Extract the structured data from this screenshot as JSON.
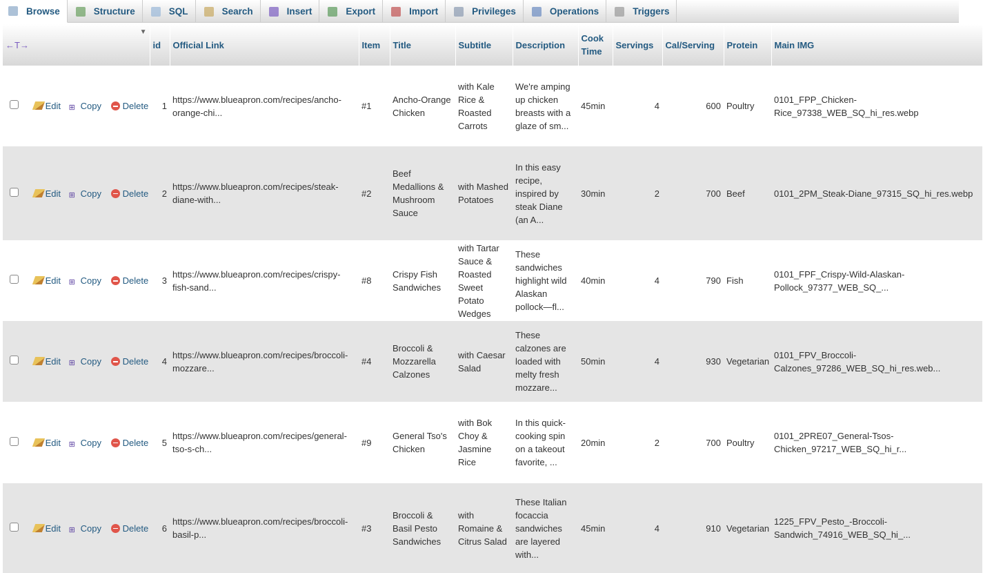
{
  "tabs": [
    {
      "label": "Browse",
      "icon": "browse-icon",
      "active": true
    },
    {
      "label": "Structure",
      "icon": "structure-icon"
    },
    {
      "label": "SQL",
      "icon": "sql-icon"
    },
    {
      "label": "Search",
      "icon": "search-icon"
    },
    {
      "label": "Insert",
      "icon": "insert-icon"
    },
    {
      "label": "Export",
      "icon": "export-icon"
    },
    {
      "label": "Import",
      "icon": "import-icon"
    },
    {
      "label": "Privileges",
      "icon": "privileges-icon"
    },
    {
      "label": "Operations",
      "icon": "operations-icon"
    },
    {
      "label": "Triggers",
      "icon": "triggers-icon"
    }
  ],
  "table": {
    "resize_handle": "←T→",
    "columns": [
      "id",
      "Official Link",
      "Item",
      "Title",
      "Subtitle",
      "Description",
      "Cook Time",
      "Servings",
      "Cal/Serving",
      "Protein",
      "Main IMG"
    ],
    "actions": {
      "edit": "Edit",
      "copy": "Copy",
      "delete": "Delete"
    },
    "rows": [
      {
        "id": "1",
        "link": "https://www.blueapron.com/recipes/ancho-orange-chi...",
        "item": "#1",
        "title": "Ancho-Orange Chicken",
        "subtitle": "with Kale Rice & Roasted Carrots",
        "description": "We're amping up chicken breasts with a glaze of sm...",
        "cook_time": "45min",
        "servings": "4",
        "cal": "600",
        "protein": "Poultry",
        "img": "0101_FPP_Chicken-Rice_97338_WEB_SQ_hi_res.webp"
      },
      {
        "id": "2",
        "link": "https://www.blueapron.com/recipes/steak-diane-with...",
        "item": "#2",
        "title": "Beef Medallions & Mushroom Sauce",
        "subtitle": "with Mashed Potatoes",
        "description": "In this easy recipe, inspired by steak Diane (an A...",
        "cook_time": "30min",
        "servings": "2",
        "cal": "700",
        "protein": "Beef",
        "img": "0101_2PM_Steak-Diane_97315_SQ_hi_res.webp"
      },
      {
        "id": "3",
        "link": "https://www.blueapron.com/recipes/crispy-fish-sand...",
        "item": "#8",
        "title": "Crispy Fish Sandwiches",
        "subtitle": "with Tartar Sauce & Roasted Sweet Potato Wedges",
        "description": "These sandwiches highlight wild Alaskan pollock—fl...",
        "cook_time": "40min",
        "servings": "4",
        "cal": "790",
        "protein": "Fish",
        "img": "0101_FPF_Crispy-Wild-Alaskan-Pollock_97377_WEB_SQ_..."
      },
      {
        "id": "4",
        "link": "https://www.blueapron.com/recipes/broccoli-mozzare...",
        "item": "#4",
        "title": "Broccoli & Mozzarella Calzones",
        "subtitle": "with Caesar Salad",
        "description": "These calzones are loaded with melty fresh mozzare...",
        "cook_time": "50min",
        "servings": "4",
        "cal": "930",
        "protein": "Vegetarian",
        "img": "0101_FPV_Broccoli-Calzones_97286_WEB_SQ_hi_res.web..."
      },
      {
        "id": "5",
        "link": "https://www.blueapron.com/recipes/general-tso-s-ch...",
        "item": "#9",
        "title": "General Tso's Chicken",
        "subtitle": "with Bok Choy & Jasmine Rice",
        "description": "In this quick-cooking spin on a takeout favorite, ...",
        "cook_time": "20min",
        "servings": "2",
        "cal": "700",
        "protein": "Poultry",
        "img": "0101_2PRE07_General-Tsos-Chicken_97217_WEB_SQ_hi_r..."
      },
      {
        "id": "6",
        "link": "https://www.blueapron.com/recipes/broccoli-basil-p...",
        "item": "#3",
        "title": "Broccoli & Basil Pesto Sandwiches",
        "subtitle": "with Romaine & Citrus Salad",
        "description": "These Italian focaccia sandwiches are layered with...",
        "cook_time": "45min",
        "servings": "4",
        "cal": "910",
        "protein": "Vegetarian",
        "img": "1225_FPV_Pesto_-Broccoli-Sandwich_74916_WEB_SQ_hi_..."
      }
    ]
  }
}
